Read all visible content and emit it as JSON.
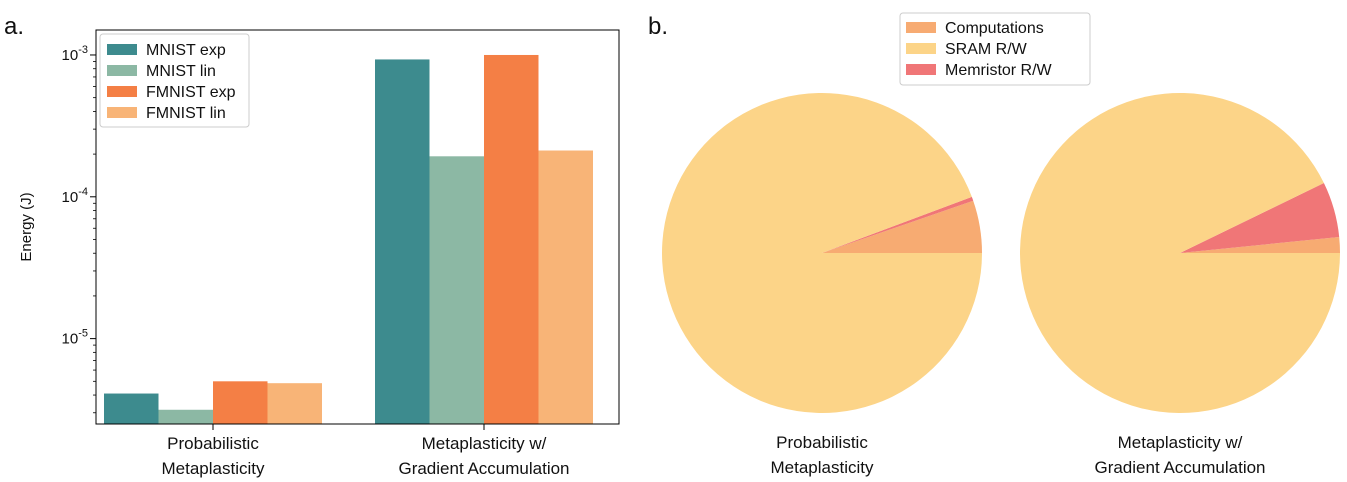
{
  "panels": {
    "a": "a.",
    "b": "b."
  },
  "chart_data": [
    {
      "type": "bar",
      "scale": "log",
      "ylabel": "Energy (J)",
      "ylim": [
        2.5e-06,
        0.0015
      ],
      "yticks": [
        {
          "value": 1e-05,
          "base": "10",
          "exp": "-5"
        },
        {
          "value": 0.0001,
          "base": "10",
          "exp": "-4"
        },
        {
          "value": 0.001,
          "base": "10",
          "exp": "-3"
        }
      ],
      "categories": [
        "Probabilistic\nMetaplasticity",
        "Metaplasticity w/\nGradient Accumulation"
      ],
      "series": [
        {
          "name": "MNIST exp",
          "color": "#3d8b8e",
          "values": [
            4.1e-06,
            0.00093
          ]
        },
        {
          "name": "MNIST lin",
          "color": "#8cb8a4",
          "values": [
            3.15e-06,
            0.000193
          ]
        },
        {
          "name": "FMNIST exp",
          "color": "#f47f45",
          "values": [
            5e-06,
            0.001
          ]
        },
        {
          "name": "FMNIST lin",
          "color": "#f8b477",
          "values": [
            4.85e-06,
            0.000212
          ]
        }
      ],
      "legend_position": "top-left",
      "grid": false
    },
    {
      "type": "pie",
      "legend": [
        {
          "name": "Computations",
          "color": "#f7ab72"
        },
        {
          "name": "SRAM R/W",
          "color": "#fcd488"
        },
        {
          "name": "Memristor R/W",
          "color": "#f07677"
        }
      ],
      "legend_position": "top-center",
      "pies": [
        {
          "label": "Probabilistic\nMetaplasticity",
          "slices": [
            {
              "name": "Computations",
              "fraction": 0.053
            },
            {
              "name": "Memristor R/W",
              "fraction": 0.004
            },
            {
              "name": "SRAM R/W",
              "fraction": 0.943
            }
          ]
        },
        {
          "label": "Metaplasticity w/\nGradient Accumulation",
          "slices": [
            {
              "name": "Computations",
              "fraction": 0.016
            },
            {
              "name": "Memristor R/W",
              "fraction": 0.056
            },
            {
              "name": "SRAM R/W",
              "fraction": 0.928
            }
          ]
        }
      ]
    }
  ]
}
